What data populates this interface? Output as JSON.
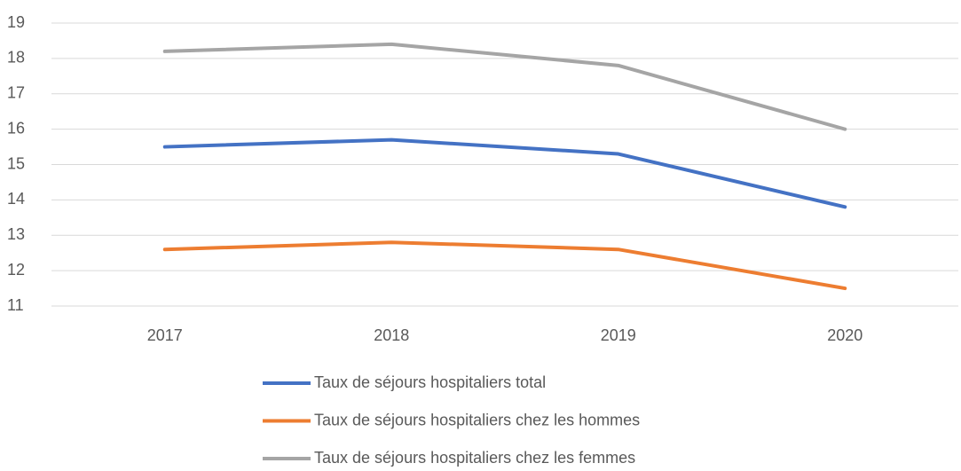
{
  "chart_data": {
    "type": "line",
    "categories": [
      "2017",
      "2018",
      "2019",
      "2020"
    ],
    "series": [
      {
        "name": "Taux de séjours hospitaliers total",
        "color": "#4472c4",
        "values": [
          15.5,
          15.7,
          15.3,
          13.8
        ]
      },
      {
        "name": "Taux de séjours hospitaliers chez les hommes",
        "color": "#ed7d31",
        "values": [
          12.6,
          12.8,
          12.6,
          11.5
        ]
      },
      {
        "name": "Taux de séjours hospitaliers chez les femmes",
        "color": "#a5a5a5",
        "values": [
          18.2,
          18.4,
          17.8,
          16
        ]
      }
    ],
    "ylim": [
      11,
      19
    ],
    "yticks": [
      11,
      12,
      13,
      14,
      15,
      16,
      17,
      18,
      19
    ],
    "grid": true,
    "legend": "bottom"
  }
}
